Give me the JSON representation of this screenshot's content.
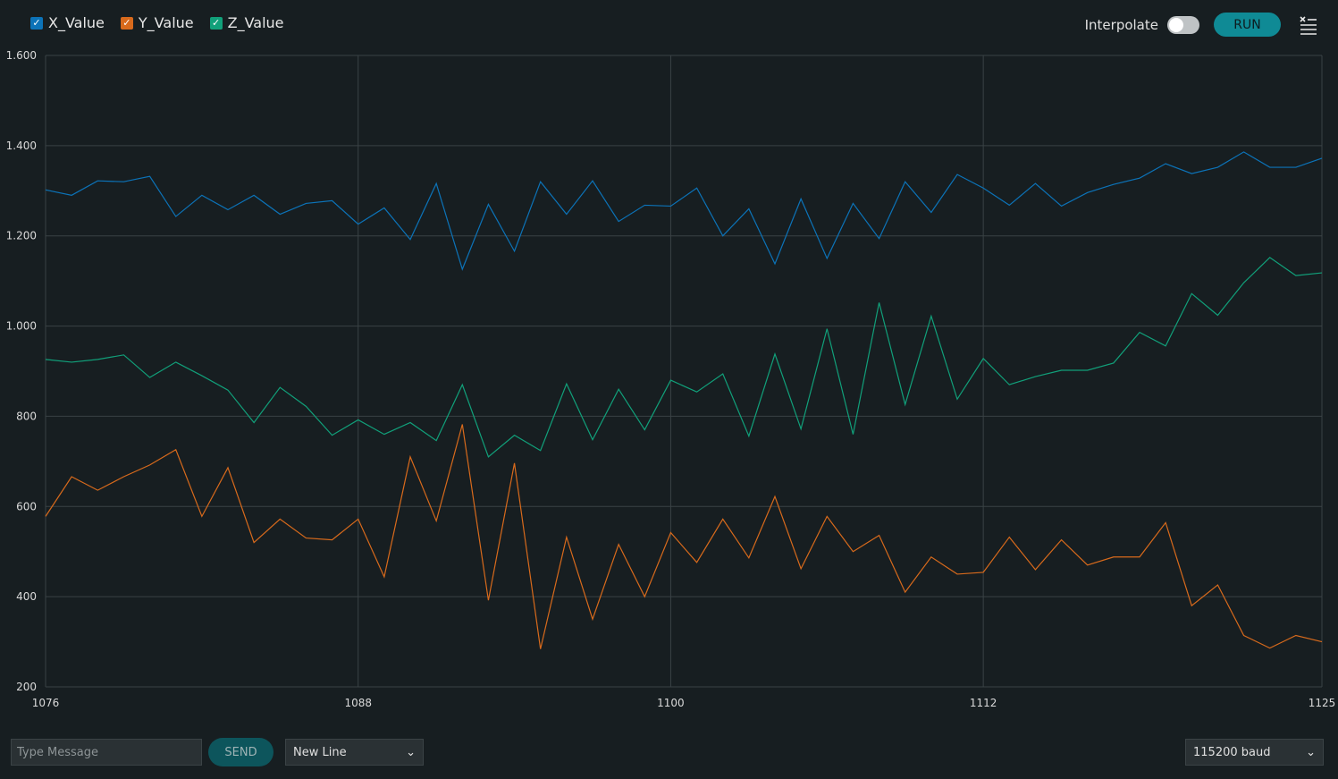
{
  "legend": [
    {
      "label": "X_Value",
      "color": "#0c73b8"
    },
    {
      "label": "Y_Value",
      "color": "#d86a1c"
    },
    {
      "label": "Z_Value",
      "color": "#11a07a"
    }
  ],
  "toolbar": {
    "interpolate_label": "Interpolate",
    "interpolate_on": false,
    "run_label": "RUN",
    "clear_icon": "clear-list-icon"
  },
  "bottom": {
    "message_placeholder": "Type Message",
    "send_label": "SEND",
    "line_ending": "New Line",
    "baud": "115200 baud"
  },
  "chart_data": {
    "type": "line",
    "ylim": [
      200,
      1600
    ],
    "yticks": [
      "1.600",
      "1.400",
      "1.200",
      "1.000",
      "800",
      "600",
      "400",
      "200"
    ],
    "xlim": [
      1076,
      1125
    ],
    "xticks": [
      "1076",
      "1088",
      "1100",
      "1112",
      "1125"
    ],
    "grid": true,
    "x": [
      1076,
      1077,
      1078,
      1079,
      1080,
      1081,
      1082,
      1083,
      1084,
      1085,
      1086,
      1087,
      1088,
      1089,
      1090,
      1091,
      1092,
      1093,
      1094,
      1095,
      1096,
      1097,
      1098,
      1099,
      1100,
      1101,
      1102,
      1103,
      1104,
      1105,
      1106,
      1107,
      1108,
      1109,
      1110,
      1111,
      1112,
      1113,
      1114,
      1115,
      1116,
      1117,
      1118,
      1119,
      1120,
      1121,
      1122,
      1123,
      1124,
      1125
    ],
    "series": [
      {
        "name": "X_Value",
        "color": "#0c73b8",
        "values": [
          1302,
          1290,
          1322,
          1320,
          1332,
          1243,
          1290,
          1258,
          1290,
          1248,
          1272,
          1278,
          1226,
          1262,
          1192,
          1316,
          1126,
          1270,
          1166,
          1320,
          1248,
          1322,
          1232,
          1268,
          1266,
          1306,
          1200,
          1260,
          1138,
          1282,
          1150,
          1272,
          1194,
          1320,
          1252,
          1336,
          1306,
          1268,
          1316,
          1266,
          1296,
          1314,
          1328,
          1360,
          1338,
          1352,
          1386,
          1352,
          1352,
          1372
        ]
      },
      {
        "name": "Y_Value",
        "color": "#d86a1c",
        "values": [
          578,
          666,
          636,
          666,
          692,
          726,
          578,
          686,
          520,
          572,
          530,
          526,
          572,
          444,
          710,
          568,
          782,
          392,
          696,
          284,
          532,
          350,
          516,
          400,
          542,
          476,
          572,
          486,
          622,
          462,
          578,
          500,
          536,
          410,
          488,
          450,
          454,
          532,
          460,
          526,
          470,
          488,
          488,
          564,
          380,
          426,
          314,
          286,
          314,
          300
        ]
      },
      {
        "name": "Z_Value",
        "color": "#11a07a",
        "values": [
          926,
          920,
          926,
          936,
          886,
          920,
          890,
          858,
          786,
          864,
          822,
          758,
          792,
          760,
          786,
          746,
          870,
          710,
          758,
          724,
          872,
          748,
          860,
          770,
          880,
          854,
          894,
          756,
          938,
          772,
          994,
          760,
          1052,
          826,
          1022,
          838,
          928,
          870,
          888,
          902,
          902,
          918,
          986,
          956,
          1072,
          1024,
          1096,
          1152,
          1112,
          1118
        ]
      }
    ]
  }
}
